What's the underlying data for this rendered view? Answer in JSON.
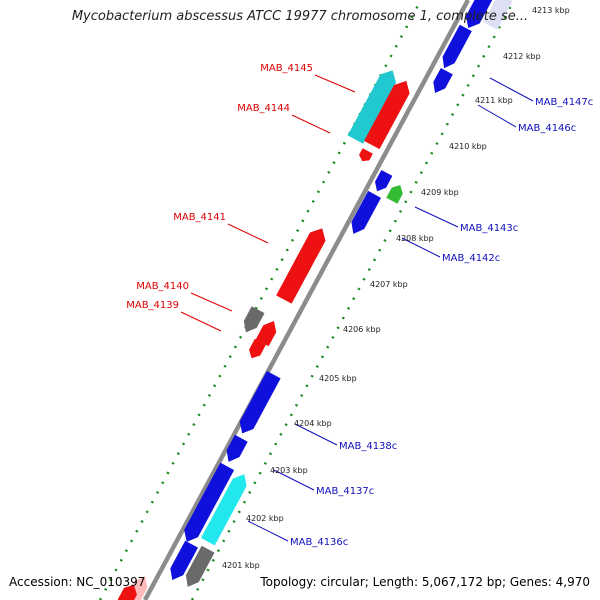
{
  "title": "Mycobacterium abscessus ATCC 19977 chromosome 1, complete se...",
  "footer": {
    "accession": "Accession: NC_010397",
    "summary": "Topology: circular; Length: 5,067,172 bp; Genes: 4,970"
  },
  "colors": {
    "backbone": "#8c8c8c",
    "forward_label": "#dd0000",
    "reverse_label": "#1010bb",
    "tick_dots": "#1a8a1a"
  },
  "ticks": [
    "4201 kbp",
    "4202 kbp",
    "4203 kbp",
    "4204 kbp",
    "4205 kbp",
    "4206 kbp",
    "4207 kbp",
    "4208 kbp",
    "4209 kbp",
    "4210 kbp",
    "4211 kbp",
    "4212 kbp",
    "4213 kbp"
  ],
  "forward_labels": [
    "MAB_4145",
    "MAB_4144",
    "MAB_4141",
    "MAB_4140",
    "MAB_4139"
  ],
  "reverse_labels": [
    "MAB_4147c",
    "MAB_4146c",
    "MAB_4143c",
    "MAB_4142c",
    "MAB_4138c",
    "MAB_4137c",
    "MAB_4136c"
  ]
}
